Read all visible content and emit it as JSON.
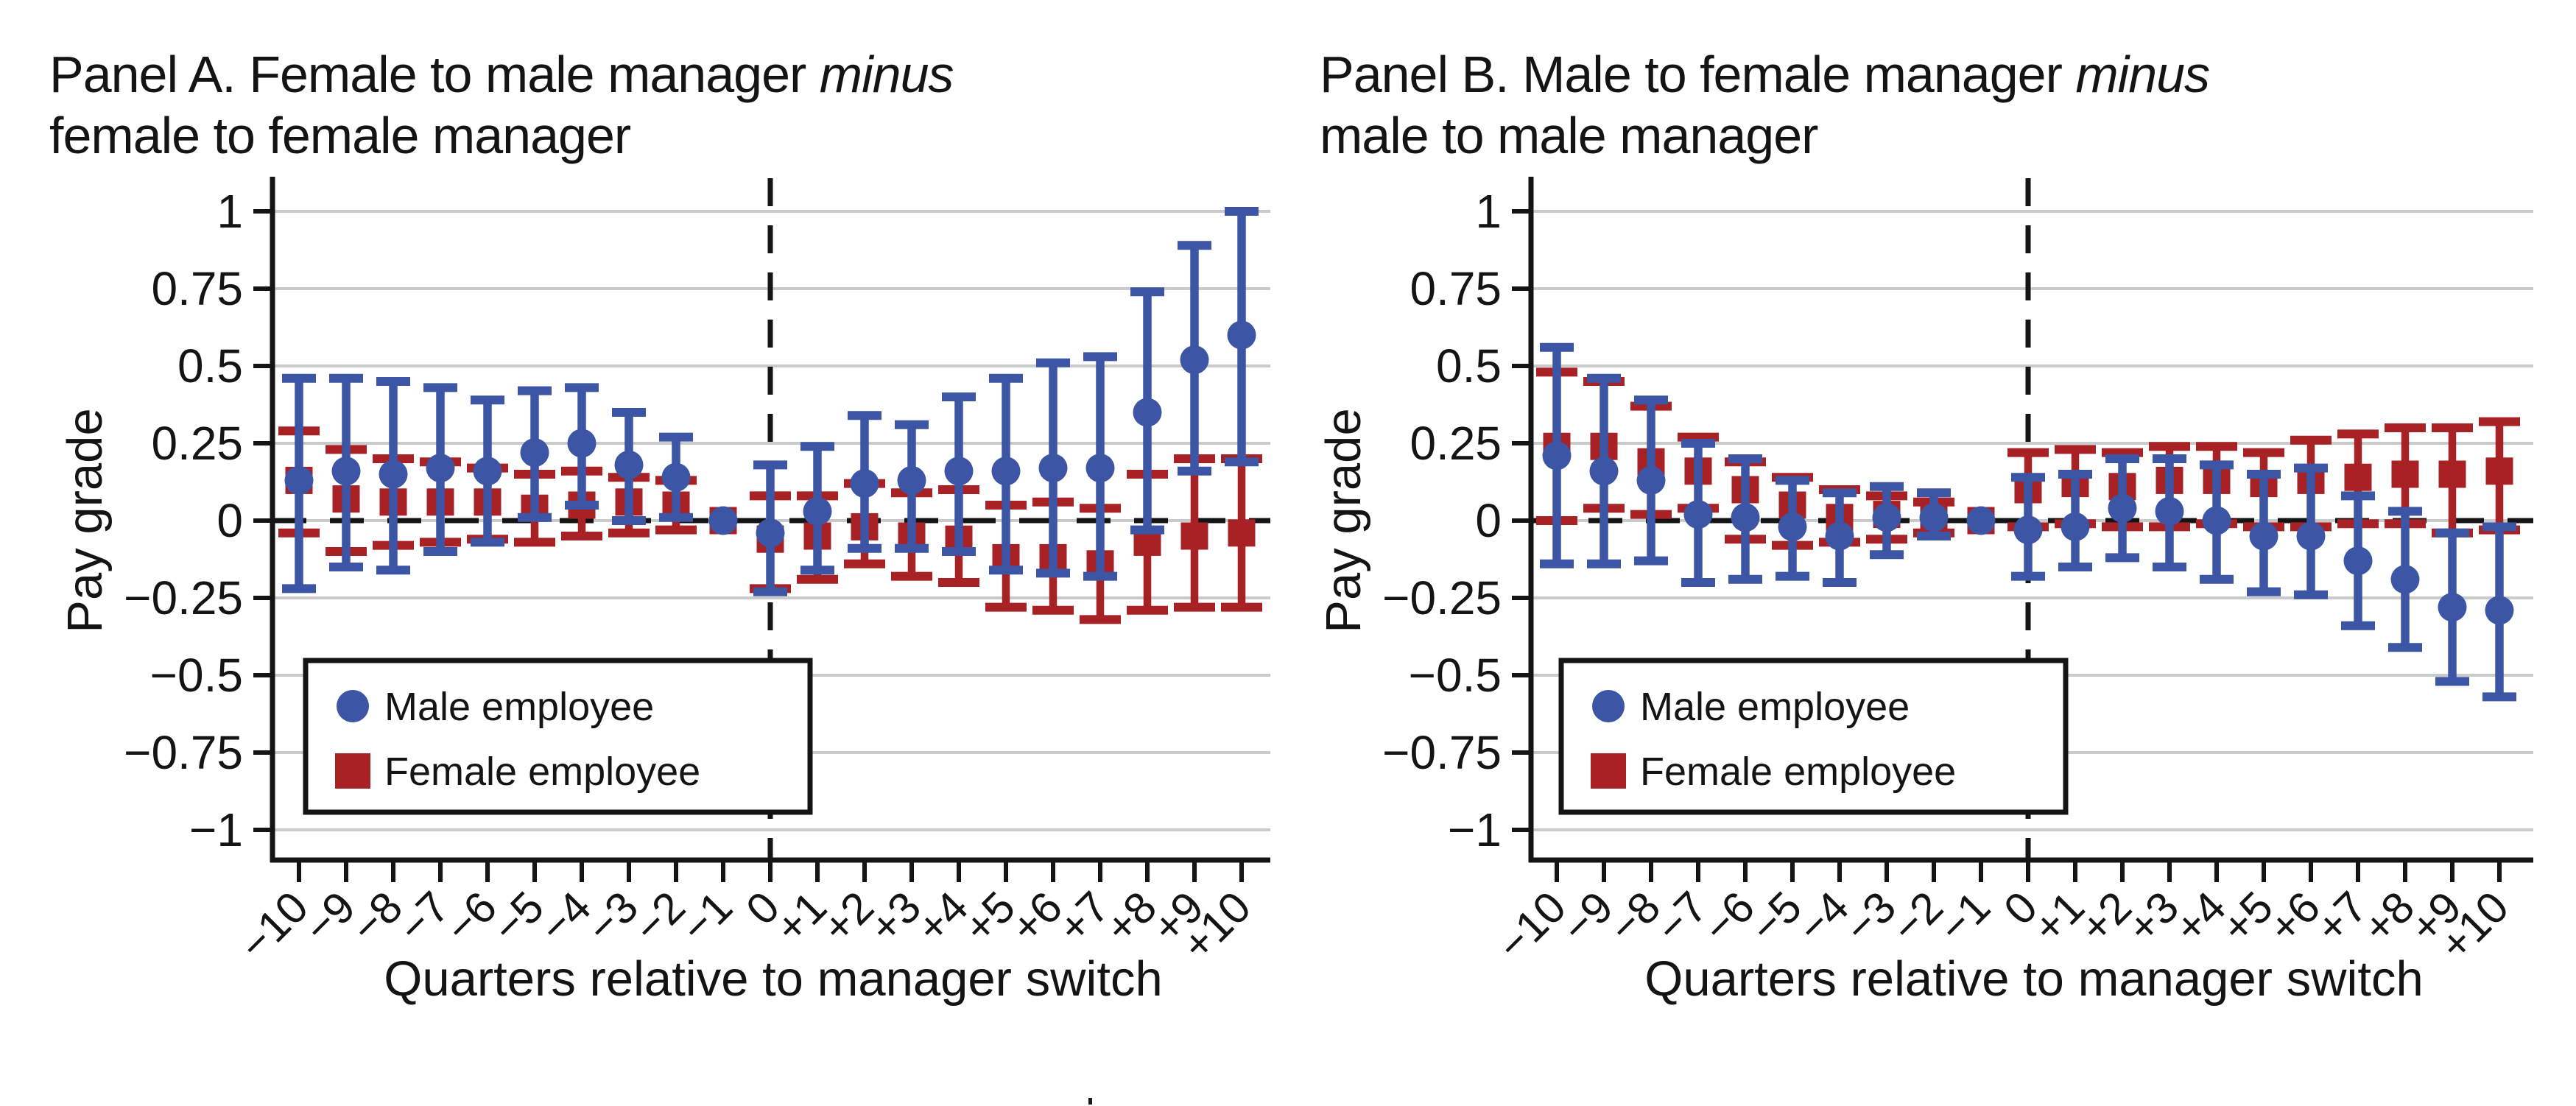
{
  "figure": {
    "background": "#ffffff",
    "text_color": "#141414",
    "grid_color": "#c9cacb",
    "stray_mark": "."
  },
  "chart_data": [
    {
      "type": "scatter",
      "panel_label": "A",
      "title_prefix": "Panel A. Female to male manager ",
      "title_italic": "minus",
      "title_line2": "female to female manager",
      "xlabel": "Quarters relative to manager switch",
      "ylabel": "Pay grade",
      "ylim": [
        -1,
        1
      ],
      "ytick_values": [
        1,
        0.75,
        0.5,
        0.25,
        0,
        -0.25,
        -0.5,
        -0.75,
        -1
      ],
      "ytick_labels": [
        "1",
        "0.75",
        "0.5",
        "0.25",
        "0",
        "−0.25",
        "−0.5",
        "−0.75",
        "−1"
      ],
      "x_values": [
        -10,
        -9,
        -8,
        -7,
        -6,
        -5,
        -4,
        -3,
        -2,
        -1,
        0,
        1,
        2,
        3,
        4,
        5,
        6,
        7,
        8,
        9,
        10
      ],
      "x_tick_labels": [
        "−10",
        "−9",
        "−8",
        "−7",
        "−6",
        "−5",
        "−4",
        "−3",
        "−2",
        "−1",
        "0",
        "+1",
        "+2",
        "+3",
        "+4",
        "+5",
        "+6",
        "+7",
        "+8",
        "+9",
        "+10"
      ],
      "zero_line": true,
      "event_line_at_x": 0,
      "grid": true,
      "legend_position": "lower-left-inside",
      "points_format": [
        "quarter",
        "value",
        "ci_low",
        "ci_high"
      ],
      "series": [
        {
          "name": "Male employee",
          "marker": "circle",
          "color": "#3c55a4",
          "points": [
            [
              -10,
              0.13,
              -0.22,
              0.46
            ],
            [
              -9,
              0.16,
              -0.15,
              0.46
            ],
            [
              -8,
              0.15,
              -0.16,
              0.45
            ],
            [
              -7,
              0.17,
              -0.1,
              0.43
            ],
            [
              -6,
              0.16,
              -0.07,
              0.39
            ],
            [
              -5,
              0.22,
              0.01,
              0.42
            ],
            [
              -4,
              0.25,
              0.05,
              0.43
            ],
            [
              -3,
              0.18,
              0.0,
              0.35
            ],
            [
              -2,
              0.14,
              0.01,
              0.27
            ],
            [
              -1,
              0.0,
              0.0,
              0.0
            ],
            [
              0,
              -0.04,
              -0.23,
              0.18
            ],
            [
              1,
              0.03,
              -0.16,
              0.24
            ],
            [
              2,
              0.12,
              -0.09,
              0.34
            ],
            [
              3,
              0.13,
              -0.09,
              0.31
            ],
            [
              4,
              0.16,
              -0.1,
              0.4
            ],
            [
              5,
              0.16,
              -0.16,
              0.46
            ],
            [
              6,
              0.17,
              -0.17,
              0.51
            ],
            [
              7,
              0.17,
              -0.18,
              0.53
            ],
            [
              8,
              0.35,
              -0.03,
              0.74
            ],
            [
              9,
              0.52,
              0.16,
              0.89
            ],
            [
              10,
              0.6,
              0.19,
              1.0
            ]
          ]
        },
        {
          "name": "Female employee",
          "marker": "square",
          "color": "#a82125",
          "points": [
            [
              -10,
              0.13,
              -0.04,
              0.29
            ],
            [
              -9,
              0.07,
              -0.1,
              0.23
            ],
            [
              -8,
              0.06,
              -0.08,
              0.2
            ],
            [
              -7,
              0.06,
              -0.07,
              0.19
            ],
            [
              -6,
              0.06,
              -0.06,
              0.17
            ],
            [
              -5,
              0.04,
              -0.07,
              0.15
            ],
            [
              -4,
              0.05,
              -0.05,
              0.16
            ],
            [
              -3,
              0.06,
              -0.04,
              0.14
            ],
            [
              -2,
              0.05,
              -0.03,
              0.13
            ],
            [
              -1,
              0.0,
              0.0,
              0.0
            ],
            [
              0,
              -0.06,
              -0.22,
              0.08
            ],
            [
              1,
              -0.05,
              -0.19,
              0.08
            ],
            [
              2,
              -0.02,
              -0.14,
              0.12
            ],
            [
              3,
              -0.05,
              -0.18,
              0.09
            ],
            [
              4,
              -0.06,
              -0.2,
              0.1
            ],
            [
              5,
              -0.12,
              -0.28,
              0.05
            ],
            [
              6,
              -0.12,
              -0.29,
              0.06
            ],
            [
              7,
              -0.14,
              -0.32,
              0.04
            ],
            [
              8,
              -0.07,
              -0.29,
              0.15
            ],
            [
              9,
              -0.05,
              -0.28,
              0.2
            ],
            [
              10,
              -0.04,
              -0.28,
              0.2
            ]
          ]
        }
      ]
    },
    {
      "type": "scatter",
      "panel_label": "B",
      "title_prefix": "Panel B. Male to female manager ",
      "title_italic": "minus",
      "title_line2": "male to male manager",
      "xlabel": "Quarters relative to manager switch",
      "ylabel": "Pay grade",
      "ylim": [
        -1,
        1
      ],
      "ytick_values": [
        1,
        0.75,
        0.5,
        0.25,
        0,
        -0.25,
        -0.5,
        -0.75,
        -1
      ],
      "ytick_labels": [
        "1",
        "0.75",
        "0.5",
        "0.25",
        "0",
        "−0.25",
        "−0.5",
        "−0.75",
        "−1"
      ],
      "x_values": [
        -10,
        -9,
        -8,
        -7,
        -6,
        -5,
        -4,
        -3,
        -2,
        -1,
        0,
        1,
        2,
        3,
        4,
        5,
        6,
        7,
        8,
        9,
        10
      ],
      "x_tick_labels": [
        "−10",
        "−9",
        "−8",
        "−7",
        "−6",
        "−5",
        "−4",
        "−3",
        "−2",
        "−1",
        "0",
        "+1",
        "+2",
        "+3",
        "+4",
        "+5",
        "+6",
        "+7",
        "+8",
        "+9",
        "+10"
      ],
      "zero_line": true,
      "event_line_at_x": 0,
      "grid": true,
      "legend_position": "lower-left-inside",
      "points_format": [
        "quarter",
        "value",
        "ci_low",
        "ci_high"
      ],
      "series": [
        {
          "name": "Male employee",
          "marker": "circle",
          "color": "#3c55a4",
          "points": [
            [
              -10,
              0.21,
              -0.14,
              0.56
            ],
            [
              -9,
              0.16,
              -0.14,
              0.46
            ],
            [
              -8,
              0.13,
              -0.13,
              0.39
            ],
            [
              -7,
              0.02,
              -0.2,
              0.25
            ],
            [
              -6,
              0.01,
              -0.19,
              0.2
            ],
            [
              -5,
              -0.02,
              -0.18,
              0.13
            ],
            [
              -4,
              -0.05,
              -0.2,
              0.09
            ],
            [
              -3,
              0.01,
              -0.11,
              0.11
            ],
            [
              -2,
              0.01,
              -0.05,
              0.09
            ],
            [
              -1,
              0.0,
              0.0,
              0.0
            ],
            [
              0,
              -0.03,
              -0.18,
              0.14
            ],
            [
              1,
              -0.02,
              -0.15,
              0.15
            ],
            [
              2,
              0.04,
              -0.12,
              0.2
            ],
            [
              3,
              0.03,
              -0.15,
              0.2
            ],
            [
              4,
              0.0,
              -0.19,
              0.18
            ],
            [
              5,
              -0.05,
              -0.23,
              0.15
            ],
            [
              6,
              -0.05,
              -0.24,
              0.17
            ],
            [
              7,
              -0.13,
              -0.34,
              0.08
            ],
            [
              8,
              -0.19,
              -0.41,
              0.03
            ],
            [
              9,
              -0.28,
              -0.52,
              -0.04
            ],
            [
              10,
              -0.29,
              -0.57,
              -0.02
            ]
          ]
        },
        {
          "name": "Female employee",
          "marker": "square",
          "color": "#a82125",
          "points": [
            [
              -10,
              0.24,
              0.0,
              0.48
            ],
            [
              -9,
              0.24,
              0.04,
              0.45
            ],
            [
              -8,
              0.19,
              0.02,
              0.37
            ],
            [
              -7,
              0.16,
              0.04,
              0.27
            ],
            [
              -6,
              0.1,
              -0.06,
              0.19
            ],
            [
              -5,
              0.05,
              -0.08,
              0.14
            ],
            [
              -4,
              0.01,
              -0.07,
              0.1
            ],
            [
              -3,
              0.02,
              -0.06,
              0.08
            ],
            [
              -2,
              0.01,
              -0.04,
              0.06
            ],
            [
              -1,
              0.0,
              0.0,
              0.0
            ],
            [
              0,
              0.1,
              -0.02,
              0.22
            ],
            [
              1,
              0.12,
              -0.01,
              0.23
            ],
            [
              2,
              0.11,
              -0.02,
              0.22
            ],
            [
              3,
              0.13,
              -0.02,
              0.24
            ],
            [
              4,
              0.13,
              -0.01,
              0.24
            ],
            [
              5,
              0.12,
              -0.02,
              0.22
            ],
            [
              6,
              0.13,
              -0.02,
              0.26
            ],
            [
              7,
              0.14,
              -0.01,
              0.28
            ],
            [
              8,
              0.15,
              -0.01,
              0.3
            ],
            [
              9,
              0.15,
              -0.04,
              0.3
            ],
            [
              10,
              0.16,
              -0.03,
              0.32
            ]
          ]
        }
      ]
    }
  ]
}
